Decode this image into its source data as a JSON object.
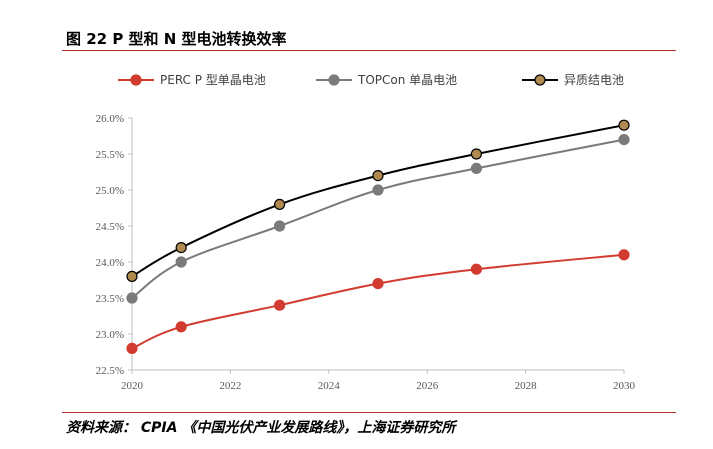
{
  "figure": {
    "title": "图 22 P 型和 N 型电池转换效率",
    "source": "资料来源： CPIA 《中国光伏产业发展路线》，上海证券研究所"
  },
  "chart_data": {
    "type": "line",
    "x": [
      2020,
      2021,
      2023,
      2025,
      2027,
      2030
    ],
    "series": [
      {
        "name": "PERC P 型单晶电池",
        "values": [
          22.8,
          23.1,
          23.4,
          23.7,
          23.9,
          24.1
        ],
        "color": "#d23b30",
        "marker_fill": "#d23b30"
      },
      {
        "name": "TOPCon 单晶电池",
        "values": [
          23.5,
          24.0,
          24.5,
          25.0,
          25.3,
          25.7
        ],
        "color": "#7a7a7a",
        "marker_fill": "#7a7a7a"
      },
      {
        "name": "异质结电池",
        "values": [
          23.8,
          24.2,
          24.8,
          25.2,
          25.5,
          25.9
        ],
        "color": "#000000",
        "marker_fill": "#b08a4f"
      }
    ],
    "xlim": [
      2020,
      2030
    ],
    "ylim": [
      22.5,
      26.0
    ],
    "x_ticks": [
      "2020",
      "2022",
      "2024",
      "2026",
      "2028",
      "2030"
    ],
    "y_ticks": [
      "22.5%",
      "23.0%",
      "23.5%",
      "24.0%",
      "24.5%",
      "25.0%",
      "25.5%",
      "26.0%"
    ],
    "legend_position": "top",
    "grid": false
  }
}
